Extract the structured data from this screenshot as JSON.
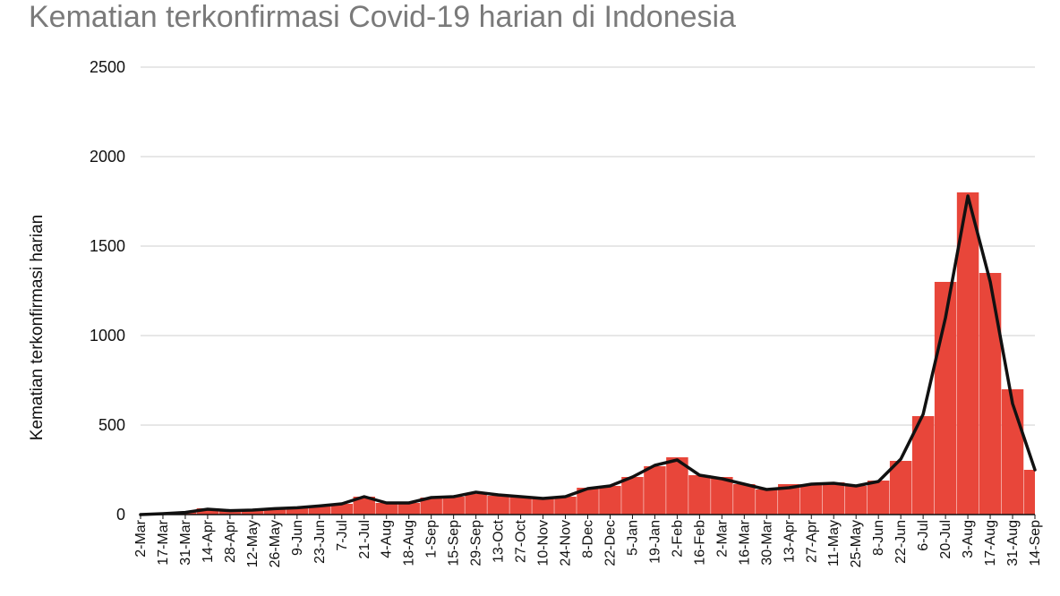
{
  "chart_data": {
    "type": "bar",
    "title": "Kematian terkonfirmasi Covid-19 harian di Indonesia",
    "ylabel": "Kematian terkonfirmasi harian",
    "xlabel": "",
    "ylim": [
      0,
      2500
    ],
    "y_ticks": [
      0,
      500,
      1000,
      1500,
      2000,
      2500
    ],
    "grid": true,
    "legend": "none",
    "colors": {
      "bars": "#e8463a",
      "line": "#111111",
      "grid": "#cfcfcf",
      "title": "#7a7a7a"
    },
    "x_ticks": [
      "2-Mar",
      "17-Mar",
      "31-Mar",
      "14-Apr",
      "28-Apr",
      "12-May",
      "26-May",
      "9-Jun",
      "23-Jun",
      "7-Jul",
      "21-Jul",
      "4-Aug",
      "18-Aug",
      "1-Sep",
      "15-Sep",
      "29-Sep",
      "13-Oct",
      "27-Oct",
      "10-Nov",
      "24-Nov",
      "8-Dec",
      "22-Dec",
      "5-Jan",
      "19-Jan",
      "2-Feb",
      "16-Feb",
      "2-Mar",
      "16-Mar",
      "30-Mar",
      "13-Apr",
      "27-Apr",
      "11-May",
      "25-May",
      "8-Jun",
      "22-Jun",
      "6-Jul",
      "20-Jul",
      "3-Aug",
      "17-Aug",
      "31-Aug",
      "14-Sep"
    ],
    "series": [
      {
        "type": "bar",
        "x": [
          "2-Mar",
          "17-Mar",
          "31-Mar",
          "14-Apr",
          "28-Apr",
          "12-May",
          "26-May",
          "9-Jun",
          "23-Jun",
          "7-Jul",
          "21-Jul",
          "4-Aug",
          "18-Aug",
          "1-Sep",
          "15-Sep",
          "29-Sep",
          "13-Oct",
          "27-Oct",
          "10-Nov",
          "24-Nov",
          "8-Dec",
          "22-Dec",
          "5-Jan",
          "19-Jan",
          "2-Feb",
          "16-Feb",
          "2-Mar",
          "16-Mar",
          "30-Mar",
          "13-Apr",
          "27-Apr",
          "11-May",
          "25-May",
          "8-Jun",
          "22-Jun",
          "6-Jul",
          "20-Jul",
          "3-Aug",
          "17-Aug",
          "31-Aug",
          "14-Sep"
        ],
        "values": [
          0,
          5,
          15,
          35,
          20,
          25,
          35,
          40,
          50,
          60,
          100,
          65,
          65,
          95,
          100,
          115,
          105,
          100,
          90,
          100,
          150,
          160,
          210,
          270,
          320,
          220,
          210,
          170,
          140,
          170,
          170,
          180,
          160,
          190,
          300,
          550,
          1300,
          1800,
          1350,
          700,
          250
        ]
      },
      {
        "type": "line",
        "x": [
          "2-Mar",
          "17-Mar",
          "31-Mar",
          "14-Apr",
          "28-Apr",
          "12-May",
          "26-May",
          "9-Jun",
          "23-Jun",
          "7-Jul",
          "21-Jul",
          "4-Aug",
          "18-Aug",
          "1-Sep",
          "15-Sep",
          "29-Sep",
          "13-Oct",
          "27-Oct",
          "10-Nov",
          "24-Nov",
          "8-Dec",
          "22-Dec",
          "5-Jan",
          "19-Jan",
          "2-Feb",
          "16-Feb",
          "2-Mar",
          "16-Mar",
          "30-Mar",
          "13-Apr",
          "27-Apr",
          "11-May",
          "25-May",
          "8-Jun",
          "22-Jun",
          "6-Jul",
          "20-Jul",
          "3-Aug",
          "17-Aug",
          "31-Aug",
          "14-Sep"
        ],
        "values": [
          0,
          5,
          12,
          30,
          22,
          25,
          33,
          38,
          48,
          60,
          100,
          65,
          65,
          95,
          100,
          125,
          110,
          100,
          90,
          100,
          145,
          160,
          210,
          275,
          305,
          220,
          200,
          170,
          140,
          150,
          170,
          175,
          160,
          185,
          310,
          560,
          1100,
          1780,
          1300,
          620,
          250
        ]
      }
    ]
  }
}
